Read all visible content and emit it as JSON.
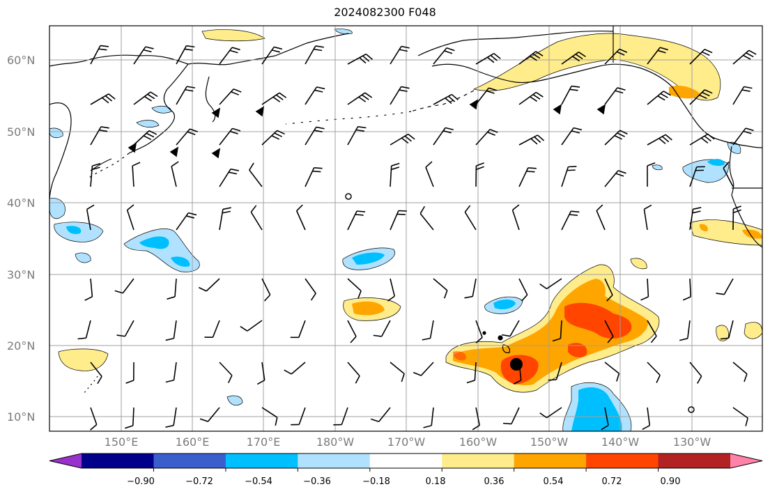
{
  "title": "2024082300 F048",
  "lat_labels": [
    "60°N",
    "50°N",
    "40°N",
    "30°N",
    "20°N",
    "10°N"
  ],
  "lon_labels": [
    "150°E",
    "160°E",
    "170°E",
    "180°W",
    "170°W",
    "160°W",
    "150°W",
    "140°W",
    "130°W"
  ],
  "colorbar": {
    "ticks": [
      "−0.90",
      "−0.72",
      "−0.54",
      "−0.36",
      "−0.18",
      "0.18",
      "0.36",
      "0.54",
      "0.72",
      "0.90"
    ],
    "colors": [
      "#9932cc",
      "#00008b",
      "#3a5fcd",
      "#00bfff",
      "#b0e2ff",
      "#ffffff",
      "#ffec8b",
      "#ffa500",
      "#ff4500",
      "#b22222",
      "#ff82ab"
    ]
  },
  "marker": {
    "label": "storm-center"
  }
}
